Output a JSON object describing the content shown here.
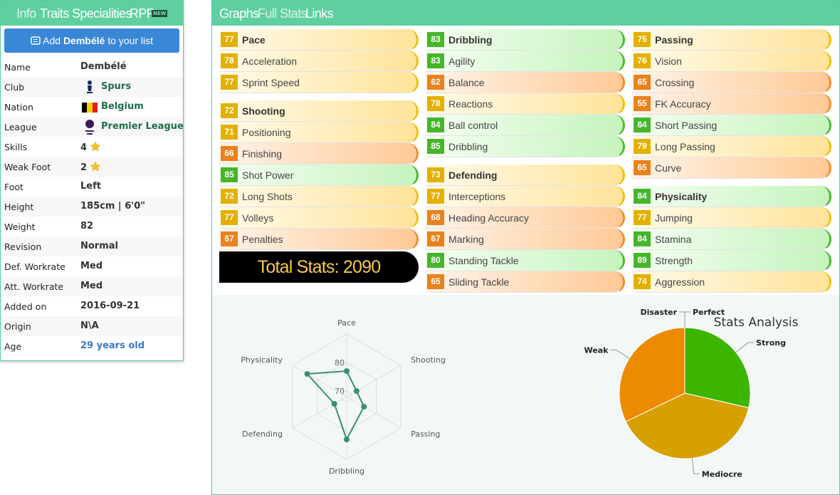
{
  "sidebar": {
    "tabs": [
      "Info",
      "Traits",
      "Specialities",
      "RPP"
    ],
    "badge": "NEW",
    "button": {
      "prefix": "Add",
      "name": "Dembélé",
      "suffix": "to your list"
    },
    "rows": [
      [
        "Name",
        "Dembélé"
      ],
      [
        "Club",
        "Spurs"
      ],
      [
        "Nation",
        "Belgium"
      ],
      [
        "League",
        "Premier League"
      ],
      [
        "Skills",
        4
      ],
      [
        "Weak Foot",
        2
      ],
      [
        "Foot",
        "Left"
      ],
      [
        "Height",
        "185cm | 6'0\""
      ],
      [
        "Weight",
        82
      ],
      [
        "Revision",
        "Normal"
      ],
      [
        "Def. Workrate",
        "Med"
      ],
      [
        "Att. Workrate",
        "Med"
      ],
      [
        "Added on",
        "2016-09-21"
      ],
      [
        "Origin",
        "N\\A"
      ],
      [
        "Age",
        "29 years old"
      ]
    ]
  },
  "main": {
    "tabs": [
      "Graphs",
      "Full Stats",
      "Links"
    ],
    "columns": [
      [
        {
          "name": "Pace",
          "value": 77,
          "stats": [
            {
              "name": "Acceleration",
              "value": 78
            },
            {
              "name": "Sprint Speed",
              "value": 77
            }
          ]
        },
        {
          "name": "Shooting",
          "value": 72,
          "stats": [
            {
              "name": "Positioning",
              "value": 71
            },
            {
              "name": "Finishing",
              "value": 66
            },
            {
              "name": "Shot Power",
              "value": 85
            },
            {
              "name": "Long Shots",
              "value": 72
            },
            {
              "name": "Volleys",
              "value": 77
            },
            {
              "name": "Penalties",
              "value": 67
            }
          ]
        }
      ],
      [
        {
          "name": "Dribbling",
          "value": 83,
          "stats": [
            {
              "name": "Agility",
              "value": 83
            },
            {
              "name": "Balance",
              "value": 62
            },
            {
              "name": "Reactions",
              "value": 78
            },
            {
              "name": "Ball control",
              "value": 84
            },
            {
              "name": "Dribbling",
              "value": 85
            }
          ]
        },
        {
          "name": "Defending",
          "value": 73,
          "stats": [
            {
              "name": "Interceptions",
              "value": 77
            },
            {
              "name": "Heading Accuracy",
              "value": 68
            },
            {
              "name": "Marking",
              "value": 67
            },
            {
              "name": "Standing Tackle",
              "value": 80
            },
            {
              "name": "Sliding Tackle",
              "value": 65
            }
          ]
        }
      ],
      [
        {
          "name": "Passing",
          "value": 75,
          "stats": [
            {
              "name": "Vision",
              "value": 76
            },
            {
              "name": "Crossing",
              "value": 65
            },
            {
              "name": "FK Accuracy",
              "value": 55
            },
            {
              "name": "Short Passing",
              "value": 84
            },
            {
              "name": "Long Passing",
              "value": 79
            },
            {
              "name": "Curve",
              "value": 65
            }
          ]
        },
        {
          "name": "Physicality",
          "value": 84,
          "stats": [
            {
              "name": "Jumping",
              "value": 77
            },
            {
              "name": "Stamina",
              "value": 84
            },
            {
              "name": "Strength",
              "value": 89
            },
            {
              "name": "Aggression",
              "value": 74
            }
          ]
        }
      ]
    ],
    "total": {
      "label": "Total Stats:",
      "value": 2090
    }
  },
  "radar": {
    "type": "radar",
    "categories": [
      "Pace",
      "Shooting",
      "Passing",
      "Dribbling",
      "Defending",
      "Physicality"
    ],
    "values": [
      77,
      72,
      75,
      83,
      73,
      84
    ],
    "rlim": [
      68,
      90
    ],
    "rticks": [
      80,
      70
    ],
    "color": "#3a8f6a"
  },
  "pie": {
    "type": "pie",
    "title": "Stats Analysis",
    "categories": [
      "Perfect",
      "Strong",
      "Mediocre",
      "Weak",
      "Disaster"
    ],
    "values": [
      0,
      8,
      11,
      9,
      0
    ],
    "colors": [
      "#1c7f00",
      "#3cb500",
      "#d6a000",
      "#ec8a00",
      "#c8401c"
    ]
  }
}
